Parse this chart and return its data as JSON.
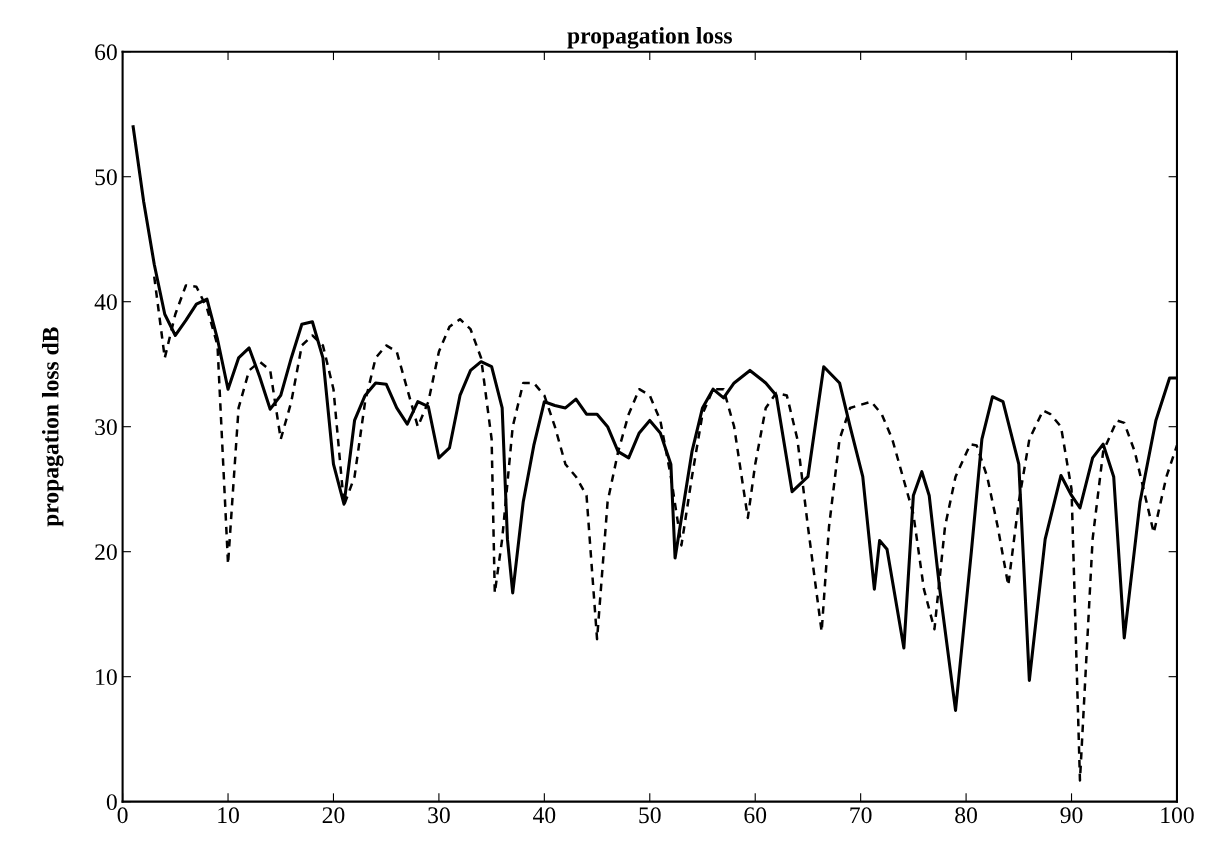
{
  "chart_data": {
    "type": "line",
    "title": "propagation loss",
    "ylabel": "propagation loss dB",
    "xlim": [
      0,
      100
    ],
    "ylim": [
      0,
      60
    ],
    "xticks": [
      0,
      10,
      20,
      30,
      40,
      50,
      60,
      70,
      80,
      90,
      100
    ],
    "yticks": [
      0,
      10,
      20,
      30,
      40,
      50,
      60
    ],
    "grid": false,
    "legend": false,
    "series": [
      {
        "color": "#000000",
        "line_style": "solid",
        "x": [
          1,
          2,
          3,
          4,
          5,
          6,
          7,
          8,
          9,
          10,
          11,
          12,
          13,
          14,
          15,
          16,
          17,
          18,
          19,
          20,
          21,
          22,
          23,
          24,
          25,
          26,
          27,
          28,
          29,
          30,
          31,
          32,
          33,
          34,
          35,
          36,
          36.5,
          37,
          38,
          39,
          40,
          41,
          42,
          43,
          44,
          45,
          46,
          47,
          48,
          49,
          50,
          51,
          52,
          52.4,
          54,
          55,
          56,
          57,
          58,
          59.5,
          61,
          62,
          63.5,
          65,
          66.5,
          68,
          69,
          70.2,
          71.3,
          71.8,
          72.5,
          74.1,
          75,
          75.8,
          76.5,
          77.5,
          79,
          80.5,
          81.5,
          82.5,
          83.5,
          85,
          86,
          87.5,
          89,
          90,
          90.8,
          92,
          93,
          94,
          95,
          96.5,
          98,
          99.3,
          100
        ],
        "values": [
          54,
          48,
          43,
          39,
          37.3,
          38.5,
          39.8,
          40.2,
          37,
          33,
          35.5,
          36.3,
          34,
          31.4,
          32.5,
          35.5,
          38.2,
          38.4,
          35.5,
          27,
          23.8,
          30.5,
          32.5,
          33.5,
          33.4,
          31.5,
          30.2,
          32,
          31.6,
          27.5,
          28.3,
          32.5,
          34.5,
          35.2,
          34.8,
          31.5,
          21,
          16.7,
          24,
          28.5,
          32,
          31.7,
          31.5,
          32.2,
          31,
          31,
          30,
          28,
          27.5,
          29.5,
          30.5,
          29.5,
          27,
          19.5,
          28,
          31.5,
          33,
          32.3,
          33.5,
          34.5,
          33.5,
          32.5,
          24.8,
          26,
          34.8,
          33.5,
          30,
          26,
          17,
          20.9,
          20.2,
          12.3,
          24.5,
          26.4,
          24.5,
          17,
          7.3,
          20,
          29,
          32.4,
          32,
          27,
          9.7,
          21,
          26.1,
          24.5,
          23.5,
          27.5,
          28.6,
          26,
          13.1,
          24,
          30.5,
          33.9,
          33.9
        ]
      },
      {
        "color": "#000000",
        "line_style": "dashed",
        "x": [
          3,
          4,
          5,
          6,
          7,
          8,
          9,
          10,
          11,
          12,
          13,
          14,
          15,
          16,
          17,
          18,
          19,
          20,
          21,
          22,
          23,
          24,
          25,
          26,
          27,
          28,
          29,
          30,
          31,
          32,
          33,
          34,
          35,
          35.3,
          36,
          37,
          38,
          39,
          40,
          41,
          42,
          43,
          44,
          45,
          46,
          47,
          48,
          49,
          50,
          51,
          52,
          53,
          54,
          55,
          56,
          57,
          58,
          59.3,
          60,
          61,
          62,
          63,
          64,
          65,
          66.3,
          67,
          68,
          69,
          71,
          72,
          73,
          74,
          75,
          76,
          77,
          78,
          79,
          80.4,
          81,
          82,
          83,
          84,
          85,
          86,
          87.3,
          88,
          89,
          90,
          90.8,
          92,
          93,
          94.3,
          95,
          96,
          97.8,
          99,
          100
        ],
        "values": [
          42,
          35.5,
          39,
          41.3,
          41.2,
          39.5,
          36.5,
          19,
          31.5,
          34.5,
          35.2,
          34.5,
          29,
          32,
          36.5,
          37.3,
          36.5,
          33,
          23.7,
          26,
          32,
          35.5,
          36.5,
          36,
          33,
          30,
          32,
          36,
          38,
          38.6,
          37.8,
          35.5,
          29,
          16.7,
          21,
          30,
          33.5,
          33.5,
          32.5,
          30,
          27,
          26,
          24.5,
          13,
          24,
          28,
          31,
          33,
          32.5,
          30.5,
          26,
          20.5,
          26,
          31,
          33,
          33,
          30,
          22.7,
          27,
          31.5,
          32.7,
          32.5,
          29,
          22,
          13.6,
          22,
          29,
          31.5,
          32,
          31,
          29,
          26,
          23,
          17,
          13.8,
          22,
          26,
          28.6,
          28.5,
          26,
          22,
          17.3,
          24,
          29,
          31.3,
          31,
          30,
          25,
          1.7,
          21,
          28,
          30.5,
          30.3,
          28,
          21.5,
          26,
          28.5
        ]
      }
    ]
  }
}
